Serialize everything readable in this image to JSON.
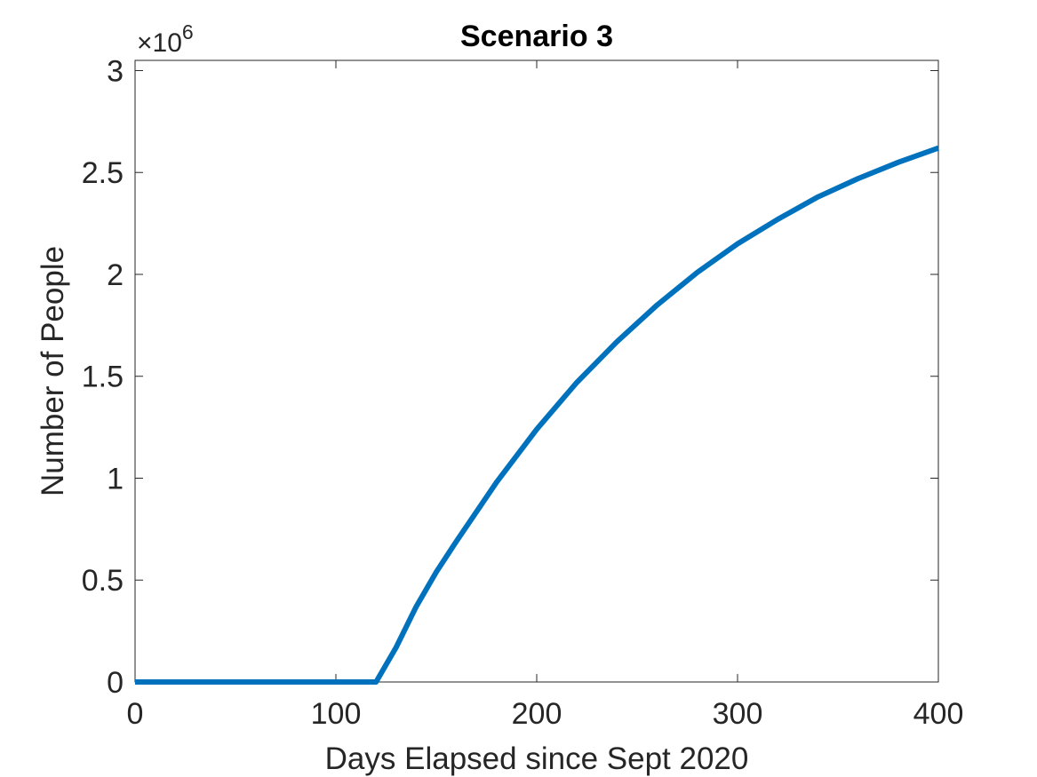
{
  "chart_data": {
    "type": "line",
    "title": "Scenario 3",
    "xlabel": "Days Elapsed since Sept 2020",
    "ylabel": "Number of People",
    "xlim": [
      0,
      400
    ],
    "ylim": [
      0,
      3050000
    ],
    "x_ticks": [
      0,
      100,
      200,
      300,
      400
    ],
    "x_tick_labels": [
      "0",
      "100",
      "200",
      "300",
      "400"
    ],
    "y_ticks": [
      0,
      500000,
      1000000,
      1500000,
      2000000,
      2500000,
      3000000
    ],
    "y_tick_labels": [
      "0",
      "0.5",
      "1",
      "1.5",
      "2",
      "2.5",
      "3"
    ],
    "y_multiplier_base": "×10",
    "y_multiplier_exponent": "6",
    "grid": false,
    "series": [
      {
        "color": "#0072BD",
        "x": [
          0,
          50,
          100,
          120,
          130,
          140,
          150,
          160,
          180,
          200,
          220,
          240,
          260,
          280,
          300,
          320,
          340,
          360,
          380,
          400
        ],
        "y": [
          0,
          0,
          0,
          0,
          170000,
          370000,
          540000,
          690000,
          980000,
          1240000,
          1470000,
          1670000,
          1850000,
          2010000,
          2150000,
          2270000,
          2380000,
          2470000,
          2550000,
          2620000
        ]
      }
    ]
  }
}
